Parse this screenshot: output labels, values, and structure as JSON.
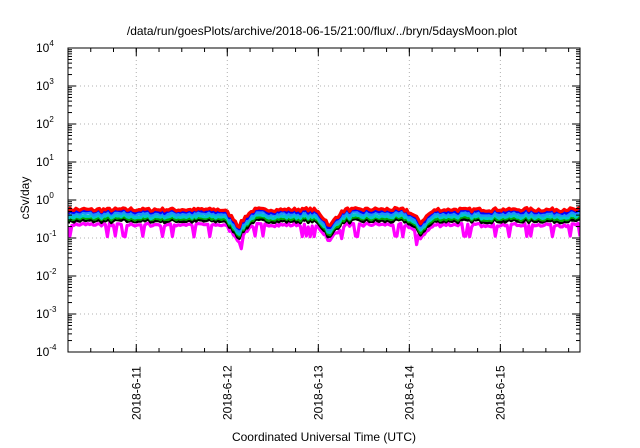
{
  "chart_data": {
    "type": "area",
    "title": "/data/run/goesPlots/archive/2018-06-15/21:00/flux/../bryn/5daysMoon.plot",
    "xlabel": "Coordinated Universal Time (UTC)",
    "ylabel": "cSv/day",
    "yscale": "log",
    "ylim": [
      0.0001,
      10000
    ],
    "xlim": [
      "2018-06-10 06:00",
      "2018-06-15 21:00"
    ],
    "grid": true,
    "x_ticks": [
      "2018-6-11",
      "2018-6-12",
      "2018-6-13",
      "2018-6-14",
      "2018-6-15"
    ],
    "y_ticks": [
      {
        "base": "10",
        "exp": "4"
      },
      {
        "base": "10",
        "exp": "3"
      },
      {
        "base": "10",
        "exp": "2"
      },
      {
        "base": "10",
        "exp": "1"
      },
      {
        "base": "10",
        "exp": "0"
      },
      {
        "base": "10",
        "exp": "-1"
      },
      {
        "base": "10",
        "exp": "-2"
      },
      {
        "base": "10",
        "exp": "-3"
      },
      {
        "base": "10",
        "exp": "-4"
      }
    ],
    "series": [
      {
        "color": "#ff0000",
        "level": 0.55
      },
      {
        "color": "#0000ff",
        "level": 0.5
      },
      {
        "color": "#1e90ff",
        "level": 0.43
      },
      {
        "color": "#00c8c8",
        "level": 0.36
      },
      {
        "color": "#00aa00",
        "level": 0.32
      },
      {
        "color": "#000000",
        "level": 0.28
      },
      {
        "color": "#ff00ff",
        "level": 0.22
      }
    ],
    "dips": [
      {
        "time": "2018-06-12 03:00",
        "factor": 0.35
      },
      {
        "time": "2018-06-13 03:00",
        "factor": 0.35
      },
      {
        "time": "2018-06-14 03:00",
        "factor": 0.45
      }
    ]
  }
}
